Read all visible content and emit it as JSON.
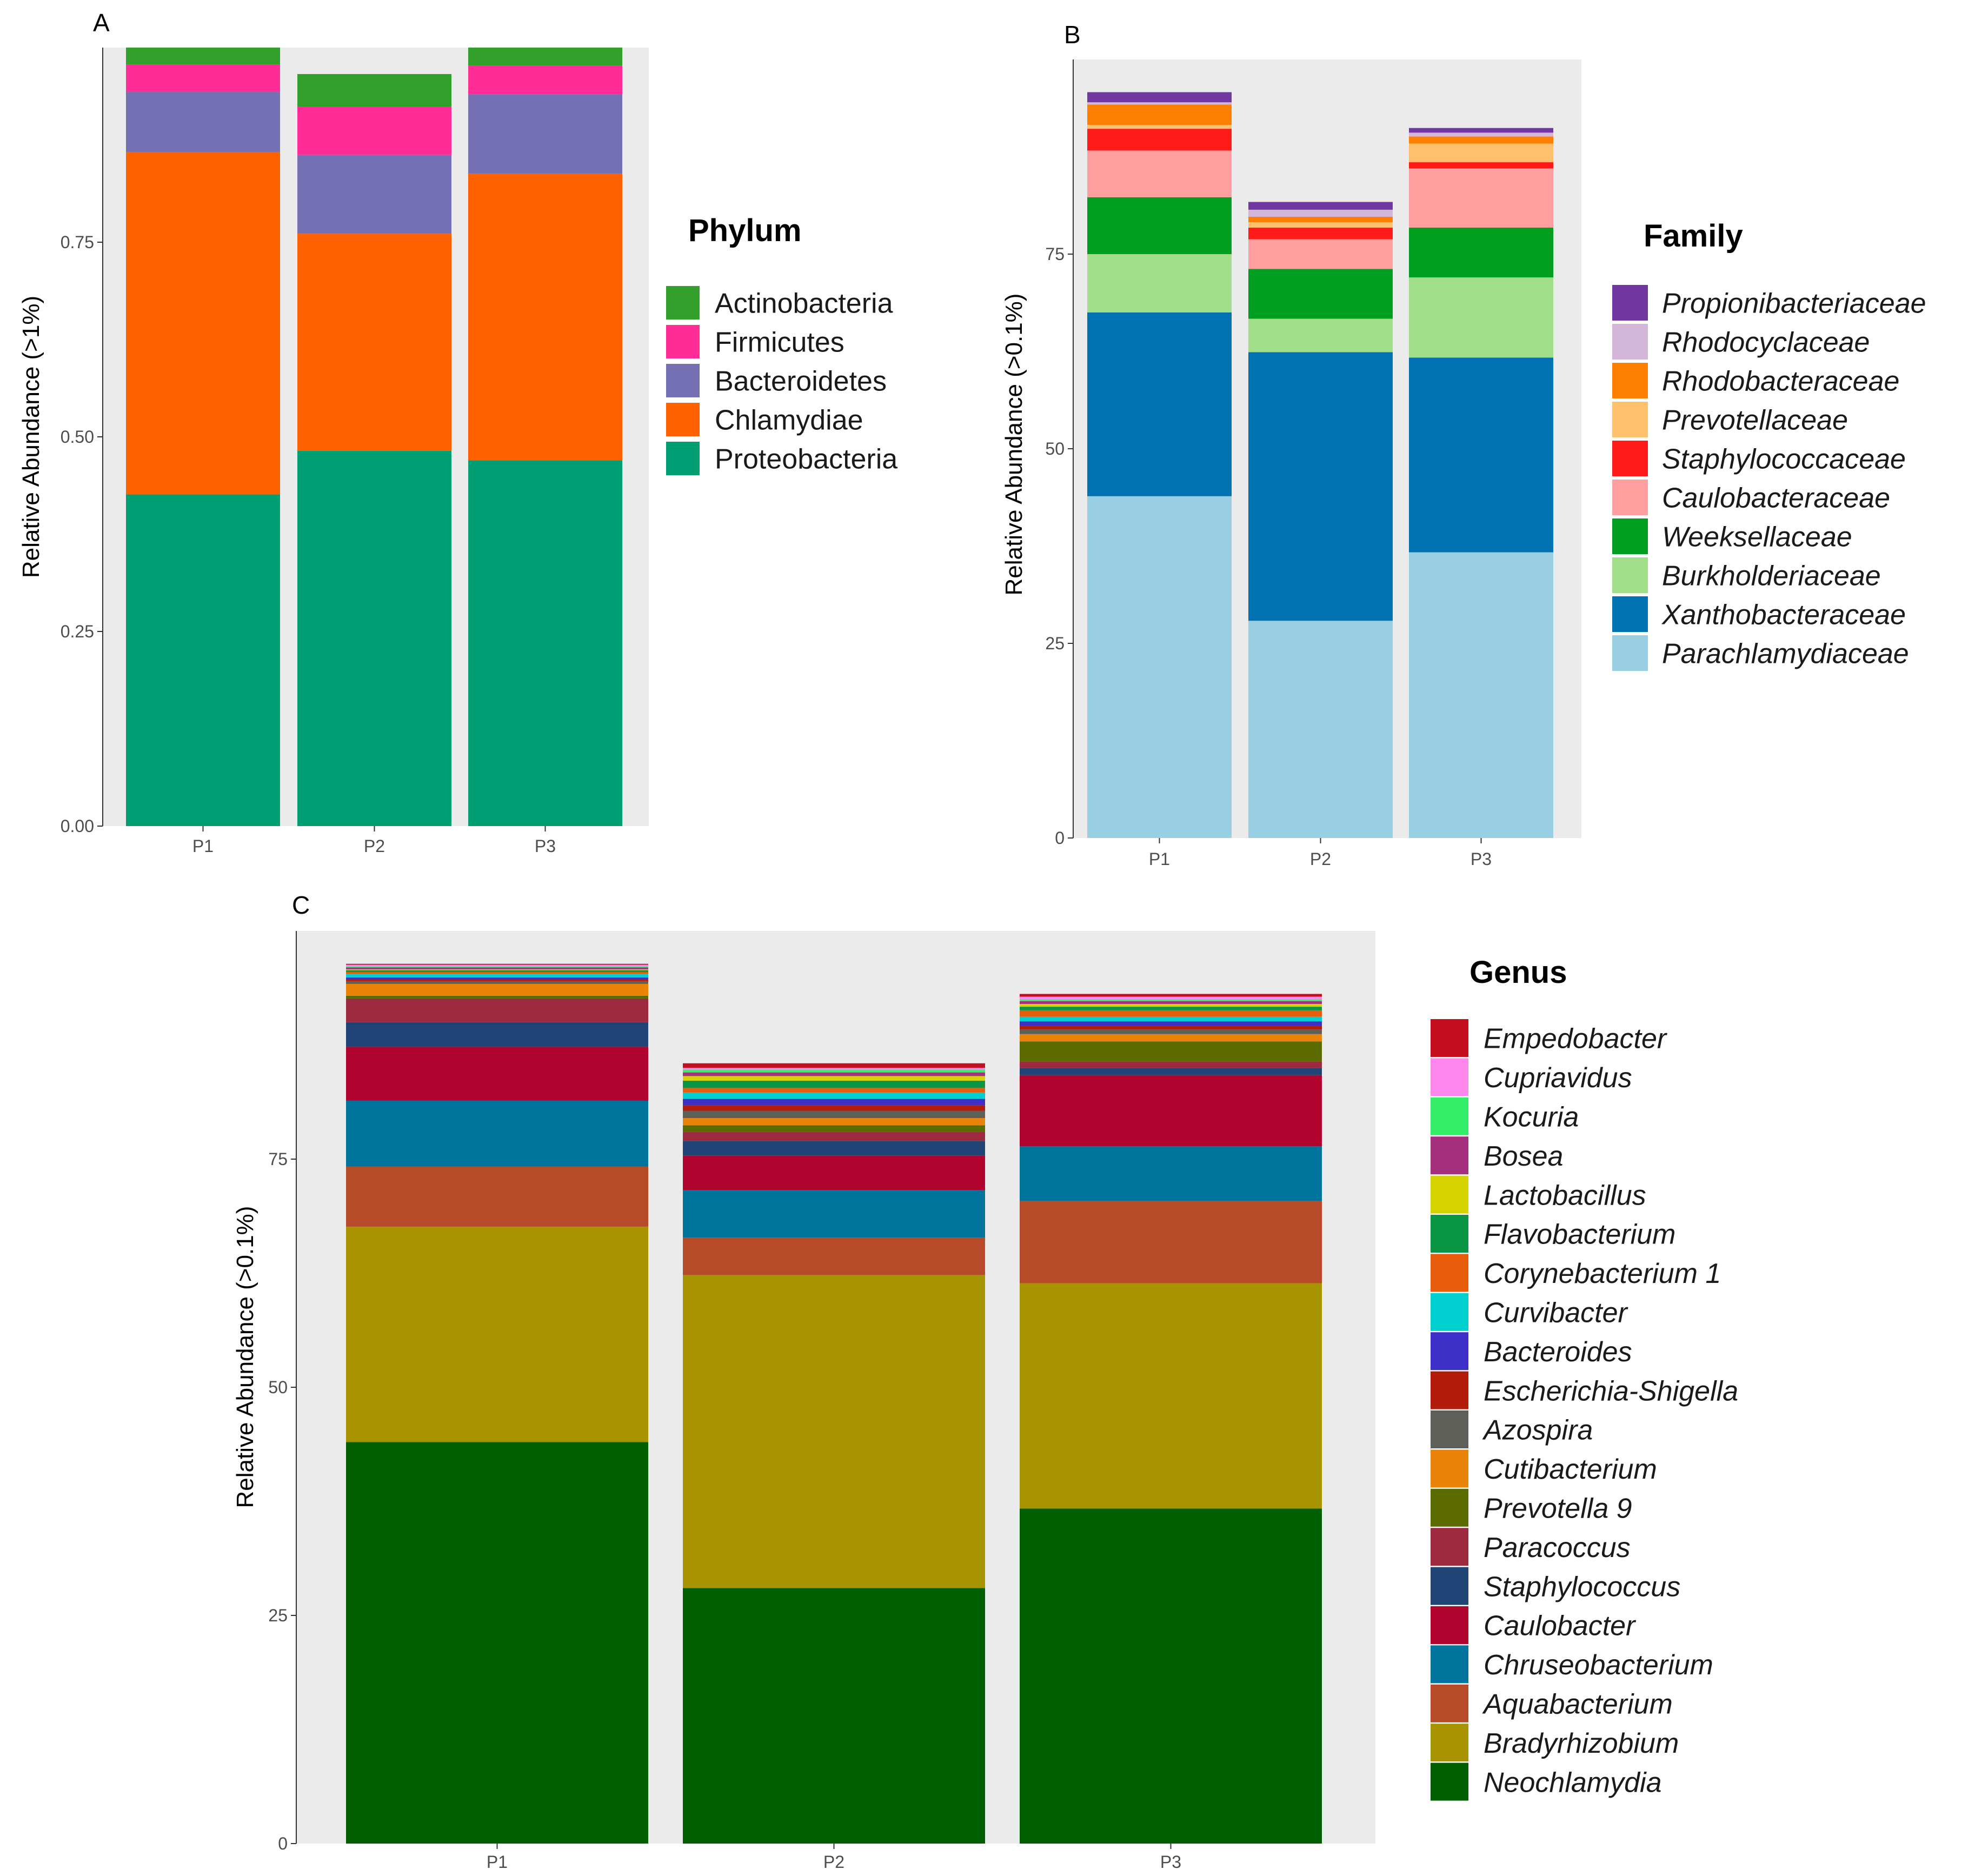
{
  "chart_data": [
    {
      "panel": "A",
      "type": "bar",
      "stacked": true,
      "categories": [
        "P1",
        "P2",
        "P3"
      ],
      "ylabel": "Relative Abundance (>1%)",
      "ylim": [
        0,
        1.0
      ],
      "yticks": [
        0,
        0.25,
        0.5,
        0.75
      ],
      "ytick_labels": [
        "0.00",
        "0.25",
        "0.50",
        "0.75"
      ],
      "grid": false,
      "legend": {
        "title": "Phylum",
        "position": "right",
        "italic": false
      },
      "series": [
        {
          "name": "Proteobacteria",
          "color": "#009E73",
          "values": [
            0.426,
            0.482,
            0.47
          ]
        },
        {
          "name": "Chlamydiae",
          "color": "#FF6000",
          "values": [
            0.44,
            0.279,
            0.368
          ]
        },
        {
          "name": "Bacteroidetes",
          "color": "#7570B3",
          "values": [
            0.077,
            0.101,
            0.102
          ]
        },
        {
          "name": "Firmicutes",
          "color": "#FF2D95",
          "values": [
            0.035,
            0.062,
            0.037
          ]
        },
        {
          "name": "Actinobacteria",
          "color": "#33A02C",
          "values": [
            0.022,
            0.042,
            0.023
          ]
        }
      ]
    },
    {
      "panel": "B",
      "type": "bar",
      "stacked": true,
      "categories": [
        "P1",
        "P2",
        "P3"
      ],
      "ylabel": "Relative Abundance (>0.1%)",
      "ylim": [
        0,
        100
      ],
      "yticks": [
        0,
        25,
        50,
        75
      ],
      "ytick_labels": [
        "0",
        "25",
        "50",
        "75"
      ],
      "grid": false,
      "legend": {
        "title": "Family",
        "position": "right",
        "italic": true
      },
      "series": [
        {
          "name": "Parachlamydiaceae",
          "color": "#99CFE3",
          "values": [
            43.9,
            27.9,
            36.7
          ]
        },
        {
          "name": "Xanthobacteraceae",
          "color": "#0072B2",
          "values": [
            23.6,
            34.5,
            25.0
          ]
        },
        {
          "name": "Burkholderiaceae",
          "color": "#A1DE8A",
          "values": [
            7.5,
            4.3,
            10.3
          ]
        },
        {
          "name": "Weeksellaceae",
          "color": "#009E1E",
          "values": [
            7.3,
            6.4,
            6.4
          ]
        },
        {
          "name": "Caulobacteraceae",
          "color": "#FF9E9E",
          "values": [
            6.0,
            3.8,
            7.6
          ]
        },
        {
          "name": "Staphylococcaceae",
          "color": "#FF1A1A",
          "values": [
            2.8,
            1.5,
            0.8
          ]
        },
        {
          "name": "Prevotellaceae",
          "color": "#FFC06E",
          "values": [
            0.5,
            0.7,
            2.4
          ]
        },
        {
          "name": "Rhodobacteraceae",
          "color": "#FF7F00",
          "values": [
            2.6,
            0.7,
            0.9
          ]
        },
        {
          "name": "Rhodocyclaceae",
          "color": "#D3B5DA",
          "values": [
            0.3,
            0.9,
            0.5
          ]
        },
        {
          "name": "Propionibacteriaceae",
          "color": "#7038A0",
          "values": [
            1.3,
            1.0,
            0.6
          ]
        }
      ]
    },
    {
      "panel": "C",
      "type": "bar",
      "stacked": true,
      "categories": [
        "P1",
        "P2",
        "P3"
      ],
      "ylabel": "Relative Abundance (>0.1%)",
      "ylim": [
        0,
        100
      ],
      "yticks": [
        0,
        25,
        50,
        75
      ],
      "ytick_labels": [
        "0",
        "25",
        "50",
        "75"
      ],
      "grid": false,
      "legend": {
        "title": "Genus",
        "position": "right",
        "italic": true
      },
      "series": [
        {
          "name": "Neochlamydia",
          "color": "#005F00",
          "values": [
            44.0,
            28.0,
            36.7
          ]
        },
        {
          "name": "Bradyrhizobium",
          "color": "#A89400",
          "values": [
            23.6,
            34.3,
            24.7
          ]
        },
        {
          "name": "Aquabacterium",
          "color": "#B64A29",
          "values": [
            6.6,
            4.1,
            9.0
          ]
        },
        {
          "name": "Chruseobacterium",
          "color": "#00749C",
          "values": [
            7.2,
            5.2,
            6.0
          ]
        },
        {
          "name": "Caulobacter",
          "color": "#B0042F",
          "values": [
            5.9,
            3.8,
            7.8
          ]
        },
        {
          "name": "Staphylococcus",
          "color": "#1F4475",
          "values": [
            2.7,
            1.6,
            0.8
          ]
        },
        {
          "name": "Paracoccus",
          "color": "#9E2A3F",
          "values": [
            2.6,
            1.0,
            0.7
          ]
        },
        {
          "name": "Prevotella 9",
          "color": "#5B6B00",
          "values": [
            0.3,
            0.7,
            2.2
          ]
        },
        {
          "name": "Cutibacterium",
          "color": "#E9830A",
          "values": [
            1.3,
            0.8,
            0.8
          ]
        },
        {
          "name": "Azospira",
          "color": "#5F5F5A",
          "values": [
            0.3,
            0.8,
            0.5
          ]
        },
        {
          "name": "Escherichia-Shigella",
          "color": "#B31B0B",
          "values": [
            0.2,
            0.6,
            0.4
          ]
        },
        {
          "name": "Bacteroides",
          "color": "#3E2FC9",
          "values": [
            0.2,
            0.7,
            0.5
          ]
        },
        {
          "name": "Curvibacter",
          "color": "#00D0D0",
          "values": [
            0.4,
            0.7,
            0.5
          ]
        },
        {
          "name": "Corynebacterium 1",
          "color": "#E85D0C",
          "values": [
            0.2,
            0.5,
            0.7
          ]
        },
        {
          "name": "Flavobacterium",
          "color": "#0B9645",
          "values": [
            0.2,
            0.8,
            0.4
          ]
        },
        {
          "name": "Lactobacillus",
          "color": "#D6D400",
          "values": [
            0.1,
            0.5,
            0.3
          ]
        },
        {
          "name": "Bosea",
          "color": "#A4307E",
          "values": [
            0.2,
            0.4,
            0.3
          ]
        },
        {
          "name": "Kocuria",
          "color": "#33EE66",
          "values": [
            0.1,
            0.3,
            0.2
          ]
        },
        {
          "name": "Cupriavidus",
          "color": "#FF88EE",
          "values": [
            0.2,
            0.2,
            0.3
          ]
        },
        {
          "name": "Empedobacter",
          "color": "#C40E1E",
          "values": [
            0.1,
            0.5,
            0.3
          ]
        }
      ]
    }
  ]
}
